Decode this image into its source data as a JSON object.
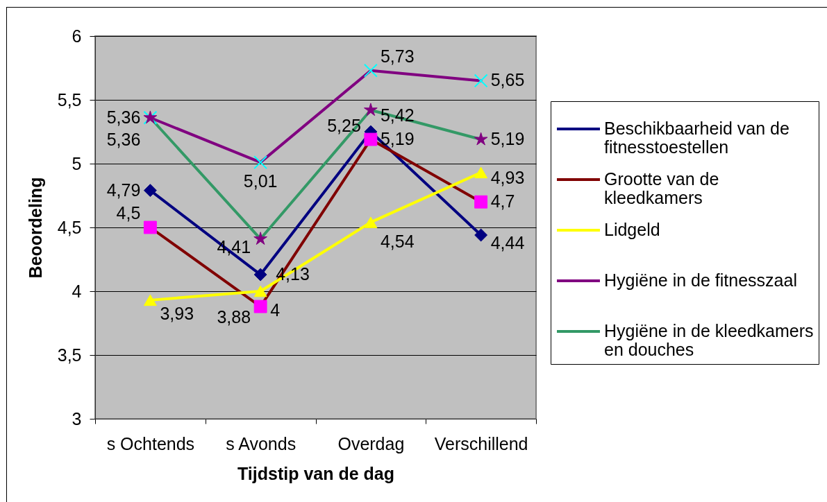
{
  "chart_data": {
    "type": "line",
    "xlabel": "Tijdstip van de dag",
    "ylabel": "Beoordeling",
    "categories": [
      "s Ochtends",
      "s Avonds",
      "Overdag",
      "Verschillend"
    ],
    "ylim": [
      3,
      6
    ],
    "yticks": [
      3,
      {
        "value": 3.5,
        "label": "3,5"
      },
      4,
      {
        "value": 4.5,
        "label": "4,5"
      },
      5,
      {
        "value": 5.5,
        "label": "5,5"
      },
      6
    ],
    "grid": "y",
    "legend": "right",
    "line_style": "solid",
    "series": [
      {
        "name": "Beschikbaarheid van de fitnesstoestellen",
        "color": "#000080",
        "marker": "diamond",
        "values": [
          4.79,
          4.13,
          5.25,
          4.44
        ],
        "value_labels": [
          "4,79",
          "4,13",
          "5,25",
          "4,44"
        ]
      },
      {
        "name": "Grootte van de kleedkamers",
        "color": "#800000",
        "colors": [
          "#ff00ff",
          "#ff00ff",
          "#ff00ff",
          "#ff00ff"
        ],
        "marker": "square",
        "values": [
          4.5,
          3.88,
          5.19,
          4.7
        ],
        "value_labels": [
          "4,5",
          "3,88",
          "5,19",
          "4,7"
        ]
      },
      {
        "name": "Lidgeld",
        "color": "#ffff00",
        "marker": "triangle",
        "values": [
          3.93,
          4,
          4.54,
          4.93
        ],
        "value_labels": [
          "3,93",
          "4",
          "4,54",
          "4,93"
        ]
      },
      {
        "name": "Hygiëne in de fitnesszaal",
        "color": "#800080",
        "colors": [
          "#00ffff",
          "#00ffff",
          "#00ffff",
          "#00ffff"
        ],
        "marker": "cross",
        "values": [
          5.36,
          5.01,
          5.73,
          5.65
        ],
        "value_labels": [
          "5,36",
          "5,01",
          "5,73",
          "5,65"
        ]
      },
      {
        "name": "Hygiëne in de kleedkamers en douches",
        "color": "#339966",
        "colors": [
          "#800080",
          "#800080",
          "#800080",
          "#800080"
        ],
        "marker": "star",
        "values": [
          5.36,
          4.41,
          5.42,
          5.19
        ],
        "value_labels": [
          "5,36",
          "4,41",
          "5,42",
          "5,19"
        ]
      }
    ]
  }
}
